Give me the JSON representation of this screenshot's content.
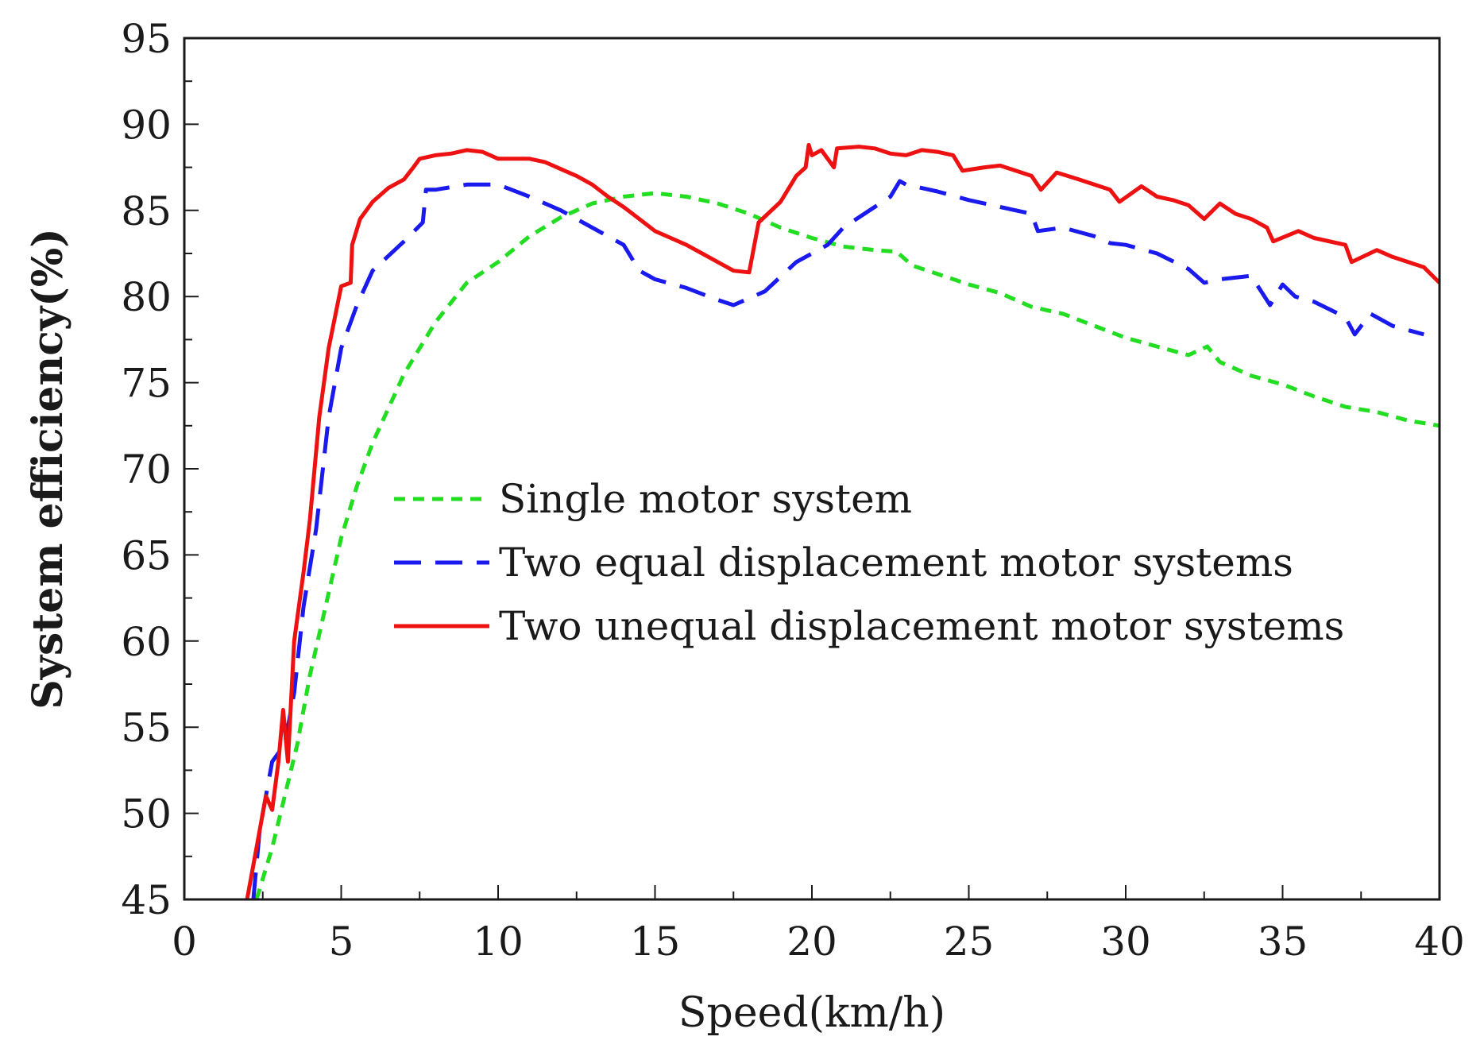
{
  "chart_data": {
    "type": "line",
    "title": "",
    "xlabel": "Speed(km/h)",
    "ylabel": "System efficiency(%)",
    "xlim": [
      0,
      40
    ],
    "ylim": [
      45,
      95
    ],
    "x_ticks": [
      0,
      5,
      10,
      15,
      20,
      25,
      30,
      35,
      40
    ],
    "y_ticks": [
      45,
      50,
      55,
      60,
      65,
      70,
      75,
      80,
      85,
      90,
      95
    ],
    "x_tick_labels": [
      "0",
      "5",
      "10",
      "15",
      "20",
      "25",
      "30",
      "35",
      "40"
    ],
    "y_tick_labels": [
      "45",
      "50",
      "55",
      "60",
      "65",
      "70",
      "75",
      "80",
      "85",
      "90",
      "95"
    ],
    "grid": false,
    "legend_position": "center-right",
    "series": [
      {
        "name": "Single motor system",
        "color": "#22dd22",
        "style": "dashed-short",
        "points": [
          [
            2.3,
            45
          ],
          [
            2.8,
            48
          ],
          [
            3.2,
            51
          ],
          [
            3.6,
            54
          ],
          [
            4,
            58
          ],
          [
            4.5,
            62
          ],
          [
            5,
            66
          ],
          [
            5.5,
            69
          ],
          [
            6,
            71.5
          ],
          [
            7,
            75.5
          ],
          [
            8,
            78.5
          ],
          [
            9,
            80.8
          ],
          [
            10,
            82
          ],
          [
            11,
            83.5
          ],
          [
            12,
            84.6
          ],
          [
            13,
            85.4
          ],
          [
            14,
            85.8
          ],
          [
            15,
            86
          ],
          [
            16,
            85.8
          ],
          [
            17,
            85.4
          ],
          [
            18,
            84.8
          ],
          [
            19,
            84
          ],
          [
            20,
            83.4
          ],
          [
            21,
            82.9
          ],
          [
            22,
            82.7
          ],
          [
            22.7,
            82.6
          ],
          [
            23.2,
            81.8
          ],
          [
            25,
            80.7
          ],
          [
            26,
            80.2
          ],
          [
            27,
            79.4
          ],
          [
            28,
            79
          ],
          [
            29,
            78.3
          ],
          [
            30,
            77.6
          ],
          [
            31,
            77.1
          ],
          [
            32,
            76.6
          ],
          [
            32.6,
            77.1
          ],
          [
            33,
            76.2
          ],
          [
            34,
            75.4
          ],
          [
            35,
            74.9
          ],
          [
            36,
            74.2
          ],
          [
            37,
            73.6
          ],
          [
            38,
            73.3
          ],
          [
            39,
            72.8
          ],
          [
            40,
            72.5
          ]
        ]
      },
      {
        "name": "Two equal displacement motor systems",
        "color": "#1a1aee",
        "style": "dashed-long",
        "points": [
          [
            2.2,
            45
          ],
          [
            2.4,
            49
          ],
          [
            2.8,
            53
          ],
          [
            3.2,
            54
          ],
          [
            3.5,
            57
          ],
          [
            3.8,
            62
          ],
          [
            4.2,
            66.5
          ],
          [
            4.6,
            73
          ],
          [
            5,
            77
          ],
          [
            5.5,
            79.5
          ],
          [
            6,
            81.5
          ],
          [
            7,
            83.2
          ],
          [
            7.6,
            84.3
          ],
          [
            7.7,
            86.2
          ],
          [
            8,
            86.2
          ],
          [
            9,
            86.5
          ],
          [
            10,
            86.5
          ],
          [
            11,
            85.8
          ],
          [
            12,
            85
          ],
          [
            13,
            84
          ],
          [
            14,
            83
          ],
          [
            14.5,
            81.5
          ],
          [
            15,
            81
          ],
          [
            16,
            80.5
          ],
          [
            17,
            79.8
          ],
          [
            17.5,
            79.5
          ],
          [
            18.5,
            80.3
          ],
          [
            19.5,
            82
          ],
          [
            20.5,
            83
          ],
          [
            21,
            84
          ],
          [
            22,
            85.2
          ],
          [
            22.5,
            85.8
          ],
          [
            22.8,
            86.7
          ],
          [
            23,
            86.5
          ],
          [
            24,
            86.1
          ],
          [
            25,
            85.6
          ],
          [
            26,
            85.2
          ],
          [
            27,
            84.8
          ],
          [
            27.2,
            83.8
          ],
          [
            28,
            84
          ],
          [
            29,
            83.5
          ],
          [
            29.5,
            83.1
          ],
          [
            30,
            83
          ],
          [
            31,
            82.5
          ],
          [
            32,
            81.6
          ],
          [
            32.5,
            80.8
          ],
          [
            33,
            81
          ],
          [
            34,
            81.2
          ],
          [
            34.6,
            79.5
          ],
          [
            35,
            80.7
          ],
          [
            35.4,
            80
          ],
          [
            36,
            79.7
          ],
          [
            37,
            78.8
          ],
          [
            37.3,
            77.8
          ],
          [
            37.8,
            79
          ],
          [
            38.5,
            78.3
          ],
          [
            39.5,
            77.8
          ]
        ]
      },
      {
        "name": "Two unequal displacement motor systems",
        "color": "#ee1111",
        "style": "solid",
        "points": [
          [
            2,
            45
          ],
          [
            2.3,
            48
          ],
          [
            2.6,
            51
          ],
          [
            2.8,
            50.2
          ],
          [
            3,
            53
          ],
          [
            3.15,
            56
          ],
          [
            3.3,
            53
          ],
          [
            3.5,
            60
          ],
          [
            3.8,
            64
          ],
          [
            4,
            67
          ],
          [
            4.3,
            73
          ],
          [
            4.6,
            77
          ],
          [
            5,
            80.6
          ],
          [
            5.3,
            80.8
          ],
          [
            5.35,
            83
          ],
          [
            5.6,
            84.5
          ],
          [
            6,
            85.5
          ],
          [
            6.5,
            86.3
          ],
          [
            7,
            86.8
          ],
          [
            7.3,
            87.5
          ],
          [
            7.5,
            88
          ],
          [
            8,
            88.2
          ],
          [
            8.5,
            88.3
          ],
          [
            9,
            88.5
          ],
          [
            9.5,
            88.4
          ],
          [
            10,
            88
          ],
          [
            10.5,
            88
          ],
          [
            11,
            88
          ],
          [
            11.5,
            87.8
          ],
          [
            12,
            87.4
          ],
          [
            12.5,
            87
          ],
          [
            13,
            86.5
          ],
          [
            13.5,
            85.8
          ],
          [
            14,
            85.2
          ],
          [
            14.5,
            84.5
          ],
          [
            15,
            83.8
          ],
          [
            15.5,
            83.4
          ],
          [
            16,
            83
          ],
          [
            16.5,
            82.5
          ],
          [
            17,
            82
          ],
          [
            17.5,
            81.5
          ],
          [
            18,
            81.4
          ],
          [
            18.3,
            84.3
          ],
          [
            19,
            85.5
          ],
          [
            19.5,
            87
          ],
          [
            19.8,
            87.5
          ],
          [
            19.9,
            88.8
          ],
          [
            20,
            88.2
          ],
          [
            20.3,
            88.5
          ],
          [
            20.7,
            87.5
          ],
          [
            20.8,
            88.6
          ],
          [
            21.5,
            88.7
          ],
          [
            22,
            88.6
          ],
          [
            22.5,
            88.3
          ],
          [
            23,
            88.2
          ],
          [
            23.5,
            88.5
          ],
          [
            24,
            88.4
          ],
          [
            24.5,
            88.2
          ],
          [
            24.8,
            87.3
          ],
          [
            25.5,
            87.5
          ],
          [
            26,
            87.6
          ],
          [
            26.5,
            87.3
          ],
          [
            27,
            87
          ],
          [
            27.3,
            86.2
          ],
          [
            27.8,
            87.2
          ],
          [
            28.5,
            86.8
          ],
          [
            29,
            86.5
          ],
          [
            29.5,
            86.2
          ],
          [
            29.8,
            85.5
          ],
          [
            30.5,
            86.4
          ],
          [
            31,
            85.8
          ],
          [
            31.5,
            85.6
          ],
          [
            32,
            85.3
          ],
          [
            32.5,
            84.5
          ],
          [
            33,
            85.4
          ],
          [
            33.5,
            84.8
          ],
          [
            34,
            84.5
          ],
          [
            34.5,
            84
          ],
          [
            34.7,
            83.2
          ],
          [
            35.5,
            83.8
          ],
          [
            36,
            83.4
          ],
          [
            37,
            83
          ],
          [
            37.2,
            82
          ],
          [
            38,
            82.7
          ],
          [
            38.5,
            82.3
          ],
          [
            39,
            82
          ],
          [
            39.5,
            81.7
          ],
          [
            40,
            80.8
          ]
        ]
      }
    ]
  }
}
